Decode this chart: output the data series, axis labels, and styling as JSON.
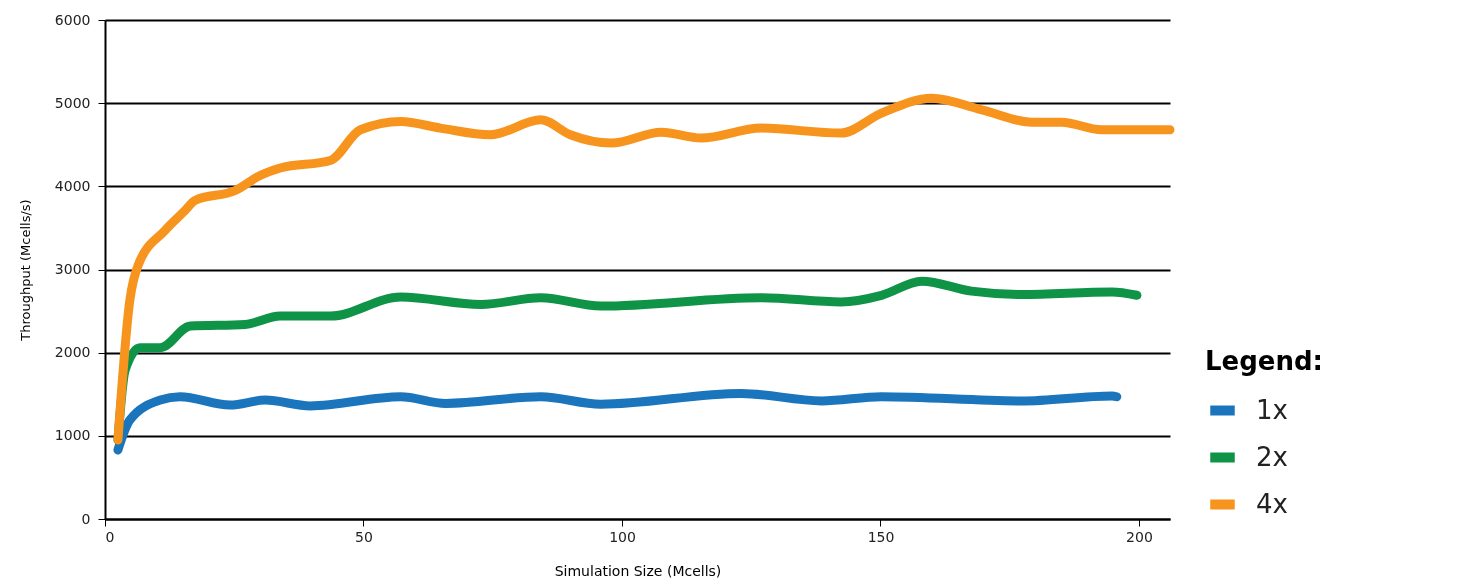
{
  "chart_data": {
    "type": "line",
    "xlabel": "Simulation Size (Mcells)",
    "ylabel": "Throughput (Mcells/s)",
    "legend_title": "Legend:",
    "xlim": [
      0,
      206
    ],
    "xticks": [
      0,
      50,
      100,
      150,
      200
    ],
    "ylim": [
      0,
      6000
    ],
    "yticks": [
      0,
      1000,
      2000,
      3000,
      4000,
      5000,
      6000
    ],
    "grid": "y",
    "legend": "right",
    "marker": "none",
    "line_style": "solid",
    "series": [
      {
        "name": "1x",
        "color": "#1a75bc",
        "x": [
          2.5,
          4.8,
          10.7,
          14.5,
          24.2,
          31,
          39.7,
          57.2,
          65.9,
          84.3,
          95.9,
          123.1,
          138.6,
          150.2,
          177.3,
          194.8,
          195.7
        ],
        "values": [
          830,
          1190,
          1430,
          1470,
          1370,
          1430,
          1360,
          1470,
          1390,
          1470,
          1380,
          1510,
          1420,
          1470,
          1420,
          1480,
          1470
        ]
      },
      {
        "name": "2x",
        "color": "#0f9347",
        "x": [
          2.5,
          3.9,
          6.8,
          10.7,
          16.5,
          27.1,
          33.9,
          43.6,
          57.2,
          72.7,
          84.3,
          95.9,
          126.9,
          142.4,
          150.2,
          158,
          167.6,
          177.3,
          194.8,
          199.6
        ],
        "values": [
          950,
          1790,
          2060,
          2060,
          2320,
          2340,
          2440,
          2440,
          2670,
          2580,
          2660,
          2560,
          2660,
          2610,
          2690,
          2860,
          2740,
          2700,
          2730,
          2690
        ]
      },
      {
        "name": "4x",
        "color": "#f7941d",
        "x": [
          2.5,
          4.8,
          6.4,
          11.6,
          15.5,
          17.4,
          25.2,
          30,
          33.9,
          43.6,
          49.4,
          57.2,
          64.9,
          74.6,
          84.3,
          90,
          97.9,
          107.6,
          115.3,
          126.9,
          142.4,
          150.2,
          159.9,
          169.6,
          179.3,
          185,
          192.8,
          206
        ],
        "values": [
          950,
          2630,
          3050,
          3470,
          3710,
          3830,
          3950,
          4130,
          4220,
          4310,
          4680,
          4780,
          4700,
          4620,
          4800,
          4620,
          4520,
          4650,
          4580,
          4700,
          4640,
          4880,
          5060,
          4920,
          4770,
          4770,
          4680,
          4680
        ]
      }
    ]
  }
}
